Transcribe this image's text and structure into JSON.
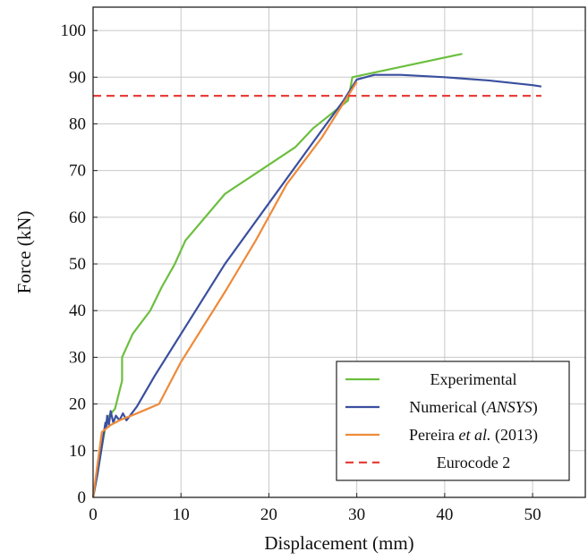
{
  "chart_data": {
    "type": "line",
    "xlabel": "Displacement (mm)",
    "ylabel": "Force (kN)",
    "xlim": [
      0,
      56
    ],
    "ylim": [
      0,
      105
    ],
    "xticks": [
      0,
      10,
      20,
      30,
      40,
      50
    ],
    "yticks": [
      0,
      10,
      20,
      30,
      40,
      50,
      60,
      70,
      80,
      90,
      100
    ],
    "grid": true,
    "legend_position": "bottom-right",
    "series": [
      {
        "name": "Experimental",
        "name_parts": [
          {
            "text": "Experimental",
            "italic": false
          }
        ],
        "color": "#6cbf3f",
        "dash": "solid",
        "points": [
          [
            0,
            0
          ],
          [
            0.5,
            5
          ],
          [
            1.2,
            13
          ],
          [
            1.6,
            17
          ],
          [
            2.5,
            19
          ],
          [
            3.3,
            25
          ],
          [
            3.3,
            30
          ],
          [
            4.5,
            35
          ],
          [
            6.5,
            40
          ],
          [
            7.8,
            45
          ],
          [
            9.3,
            50
          ],
          [
            10.5,
            55
          ],
          [
            15,
            65
          ],
          [
            19,
            70
          ],
          [
            23,
            75
          ],
          [
            25,
            79
          ],
          [
            29,
            85
          ],
          [
            29.5,
            90
          ],
          [
            42,
            95
          ]
        ]
      },
      {
        "name": "Numerical (ANSYS)",
        "name_parts": [
          {
            "text": "Numerical (",
            "italic": false
          },
          {
            "text": "ANSYS",
            "italic": true
          },
          {
            "text": ")",
            "italic": false
          }
        ],
        "color": "#3a4f9e",
        "dash": "solid",
        "points": [
          [
            0,
            0
          ],
          [
            0.5,
            5
          ],
          [
            1.0,
            11
          ],
          [
            1.4,
            16
          ],
          [
            1.5,
            15
          ],
          [
            1.6,
            17.5
          ],
          [
            1.8,
            15.5
          ],
          [
            2.0,
            18.5
          ],
          [
            2.3,
            16
          ],
          [
            2.6,
            17.5
          ],
          [
            3.0,
            16.5
          ],
          [
            3.4,
            18
          ],
          [
            3.8,
            16.5
          ],
          [
            4.2,
            17.5
          ],
          [
            5,
            19.5
          ],
          [
            7,
            26
          ],
          [
            10,
            35
          ],
          [
            15,
            50
          ],
          [
            20,
            63
          ],
          [
            25,
            76
          ],
          [
            28.5,
            85
          ],
          [
            30,
            89.5
          ],
          [
            32,
            90.5
          ],
          [
            35,
            90.5
          ],
          [
            40,
            90
          ],
          [
            45,
            89.3
          ],
          [
            50,
            88.3
          ],
          [
            51,
            88
          ]
        ]
      },
      {
        "name": "Pereira et al. (2013)",
        "name_parts": [
          {
            "text": "Pereira ",
            "italic": false
          },
          {
            "text": "et al.",
            "italic": true
          },
          {
            "text": " (2013)",
            "italic": false
          }
        ],
        "color": "#ee8a3a",
        "dash": "solid",
        "points": [
          [
            0,
            0
          ],
          [
            1,
            14
          ],
          [
            2,
            15.5
          ],
          [
            3,
            16.5
          ],
          [
            5,
            18
          ],
          [
            7.5,
            20
          ],
          [
            10,
            29
          ],
          [
            15,
            44
          ],
          [
            18.5,
            55
          ],
          [
            22,
            67
          ],
          [
            26,
            77
          ],
          [
            30,
            89
          ]
        ]
      },
      {
        "name": "Eurocode 2",
        "name_parts": [
          {
            "text": "Eurocode 2",
            "italic": false
          }
        ],
        "color": "#e8403a",
        "dash": "dashed",
        "points": [
          [
            0,
            86
          ],
          [
            51,
            86
          ]
        ]
      }
    ]
  }
}
